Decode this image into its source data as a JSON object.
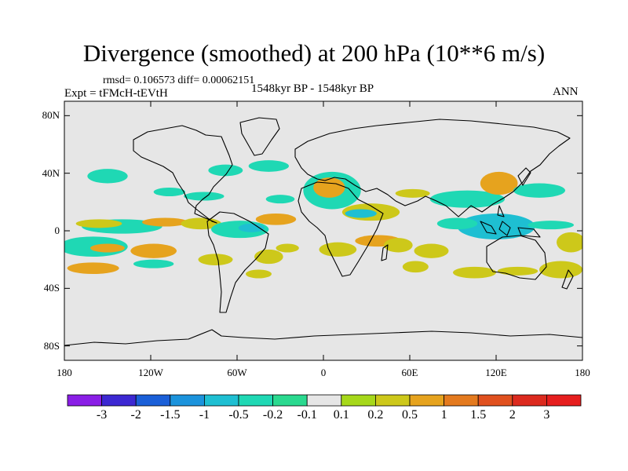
{
  "chart_data": {
    "type": "heatmap",
    "title": "Divergence (smoothed) at 200 hPa (10**6 m/s)",
    "stats_text": "rmsd= 0.106573  diff= 0.00062151",
    "expt_label": "Expt = tFMcH-tEVtH",
    "period_label": "1548kyr BP - 1548kyr BP",
    "season_label": "ANN",
    "xlabel": "",
    "ylabel": "",
    "x_range": [
      -180,
      180
    ],
    "y_range": [
      -90,
      90
    ],
    "x_ticks": [
      {
        "value": -180,
        "label": "180"
      },
      {
        "value": -120,
        "label": "120W"
      },
      {
        "value": -60,
        "label": "60W"
      },
      {
        "value": 0,
        "label": "0"
      },
      {
        "value": 60,
        "label": "60E"
      },
      {
        "value": 120,
        "label": "120E"
      },
      {
        "value": 180,
        "label": "180"
      }
    ],
    "y_ticks": [
      {
        "value": 80,
        "label": "80N"
      },
      {
        "value": 40,
        "label": "40N"
      },
      {
        "value": 0,
        "label": "0"
      },
      {
        "value": -40,
        "label": "40S"
      },
      {
        "value": -80,
        "label": "80S"
      }
    ],
    "colorbar": {
      "levels": [
        "-3",
        "-2",
        "-1.5",
        "-1",
        "-0.5",
        "-0.2",
        "-0.1",
        "0.1",
        "0.2",
        "0.5",
        "1",
        "1.5",
        "2",
        "3"
      ],
      "colors": [
        "#8a1ee6",
        "#3c28d2",
        "#1a5fd8",
        "#1b93dc",
        "#1ebfd2",
        "#1fd8b4",
        "#2ad98f",
        "#e6e6e6",
        "#a6d81a",
        "#cdc81a",
        "#e6a31e",
        "#e47a1e",
        "#e0501e",
        "#dc2a1e",
        "#e61e1e"
      ]
    },
    "regions": [
      {
        "lon": -150,
        "lat": 38,
        "rx": 14,
        "ry": 5,
        "level": "-0.2"
      },
      {
        "lon": -107,
        "lat": 27,
        "rx": 11,
        "ry": 3,
        "level": "-0.2"
      },
      {
        "lon": -38,
        "lat": 45,
        "rx": 14,
        "ry": 4,
        "level": "-0.2"
      },
      {
        "lon": -68,
        "lat": 42,
        "rx": 12,
        "ry": 4,
        "level": "-0.2"
      },
      {
        "lon": -83,
        "lat": 24,
        "rx": 14,
        "ry": 3,
        "level": "-0.2"
      },
      {
        "lon": -30,
        "lat": 22,
        "rx": 10,
        "ry": 3,
        "level": "-0.2"
      },
      {
        "lon": 6,
        "lat": 28,
        "rx": 20,
        "ry": 13,
        "level": "-0.2"
      },
      {
        "lon": 4,
        "lat": 30,
        "rx": 11,
        "ry": 7,
        "level": "0.5"
      },
      {
        "lon": -140,
        "lat": 3,
        "rx": 28,
        "ry": 5,
        "level": "-0.2"
      },
      {
        "lon": -156,
        "lat": 5,
        "rx": 16,
        "ry": 3,
        "level": "0.2"
      },
      {
        "lon": -110,
        "lat": 6,
        "rx": 16,
        "ry": 3,
        "level": "0.5"
      },
      {
        "lon": -85,
        "lat": 5,
        "rx": 14,
        "ry": 4,
        "level": "0.2"
      },
      {
        "lon": -58,
        "lat": 1,
        "rx": 20,
        "ry": 6,
        "level": "-0.2"
      },
      {
        "lon": -50,
        "lat": 2,
        "rx": 9,
        "ry": 3,
        "level": "-0.5"
      },
      {
        "lon": -33,
        "lat": 8,
        "rx": 14,
        "ry": 4,
        "level": "0.5"
      },
      {
        "lon": 33,
        "lat": 13,
        "rx": 20,
        "ry": 6,
        "level": "0.2"
      },
      {
        "lon": 26,
        "lat": 12,
        "rx": 11,
        "ry": 3,
        "level": "-0.5"
      },
      {
        "lon": 62,
        "lat": 26,
        "rx": 12,
        "ry": 3,
        "level": "0.2"
      },
      {
        "lon": 100,
        "lat": 22,
        "rx": 26,
        "ry": 6,
        "level": "-0.2"
      },
      {
        "lon": 122,
        "lat": 33,
        "rx": 13,
        "ry": 8,
        "level": "0.5"
      },
      {
        "lon": 150,
        "lat": 28,
        "rx": 18,
        "ry": 5,
        "level": "-0.2"
      },
      {
        "lon": 120,
        "lat": 3,
        "rx": 27,
        "ry": 9,
        "level": "-0.5"
      },
      {
        "lon": 93,
        "lat": 5,
        "rx": 14,
        "ry": 4,
        "level": "-0.2"
      },
      {
        "lon": 158,
        "lat": 4,
        "rx": 16,
        "ry": 3,
        "level": "-0.2"
      },
      {
        "lon": 172,
        "lat": -8,
        "rx": 10,
        "ry": 7,
        "level": "0.2"
      },
      {
        "lon": -160,
        "lat": -11,
        "rx": 24,
        "ry": 7,
        "level": "-0.2"
      },
      {
        "lon": -150,
        "lat": -12,
        "rx": 12,
        "ry": 3,
        "level": "0.5"
      },
      {
        "lon": -118,
        "lat": -14,
        "rx": 16,
        "ry": 5,
        "level": "0.5"
      },
      {
        "lon": -118,
        "lat": -23,
        "rx": 14,
        "ry": 3,
        "level": "-0.2"
      },
      {
        "lon": -160,
        "lat": -26,
        "rx": 18,
        "ry": 4,
        "level": "0.5"
      },
      {
        "lon": -75,
        "lat": -20,
        "rx": 12,
        "ry": 4,
        "level": "0.2"
      },
      {
        "lon": -38,
        "lat": -18,
        "rx": 10,
        "ry": 5,
        "level": "0.2"
      },
      {
        "lon": -25,
        "lat": -12,
        "rx": 8,
        "ry": 3,
        "level": "0.2"
      },
      {
        "lon": -45,
        "lat": -30,
        "rx": 9,
        "ry": 3,
        "level": "0.2"
      },
      {
        "lon": 10,
        "lat": -13,
        "rx": 13,
        "ry": 5,
        "level": "0.2"
      },
      {
        "lon": 38,
        "lat": -7,
        "rx": 16,
        "ry": 4,
        "level": "0.5"
      },
      {
        "lon": 52,
        "lat": -10,
        "rx": 10,
        "ry": 5,
        "level": "0.2"
      },
      {
        "lon": 75,
        "lat": -14,
        "rx": 12,
        "ry": 5,
        "level": "0.2"
      },
      {
        "lon": 64,
        "lat": -25,
        "rx": 9,
        "ry": 4,
        "level": "0.2"
      },
      {
        "lon": 105,
        "lat": -29,
        "rx": 15,
        "ry": 4,
        "level": "0.2"
      },
      {
        "lon": 135,
        "lat": -28,
        "rx": 14,
        "ry": 3,
        "level": "0.2"
      },
      {
        "lon": 165,
        "lat": -27,
        "rx": 15,
        "ry": 6,
        "level": "0.2"
      }
    ]
  }
}
